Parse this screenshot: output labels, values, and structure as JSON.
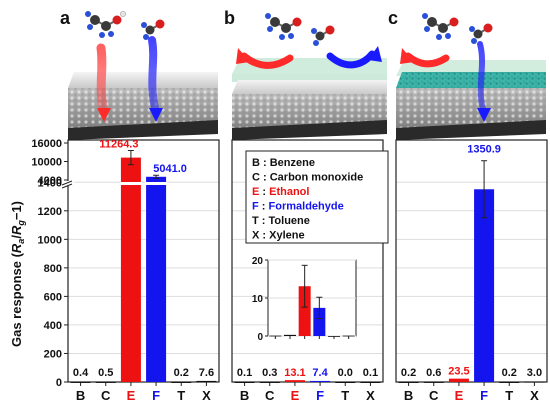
{
  "figure": {
    "ylabel_prefix": "Gas response (",
    "ylabel_R1": "R",
    "ylabel_sub1": "a",
    "ylabel_slash": "/",
    "ylabel_R2": "R",
    "ylabel_sub2": "g",
    "ylabel_suffix": "−1)",
    "y_ticks_lower": [
      "0",
      "200",
      "400",
      "600",
      "800",
      "1000",
      "1200",
      "1400"
    ],
    "y_ticks_upper": [
      "4000",
      "10000",
      "16000"
    ],
    "colors": {
      "ethanol": "#ee1111",
      "formaldehyde": "#1414ee",
      "black": "#111111",
      "grid": "#dddddd"
    }
  },
  "legend": {
    "entries": [
      {
        "key": "B",
        "sep": " : ",
        "name": "Benzene",
        "color": "#111111"
      },
      {
        "key": "C",
        "sep": " : ",
        "name": "Carbon monoxide",
        "color": "#111111"
      },
      {
        "key": "E",
        "sep": " : ",
        "name": "Ethanol",
        "color": "#ee1111"
      },
      {
        "key": "F",
        "sep": " : ",
        "name": "Formaldehyde",
        "color": "#1414ee"
      },
      {
        "key": "T",
        "sep": " : ",
        "name": "Toluene",
        "color": "#111111"
      },
      {
        "key": "X",
        "sep": " : ",
        "name": "Xylene",
        "color": "#111111"
      }
    ]
  },
  "chart_data": [
    {
      "panel": "a",
      "type": "bar",
      "categories": [
        "B",
        "C",
        "E",
        "F",
        "T",
        "X"
      ],
      "values": [
        0.4,
        0.5,
        11264.3,
        5041.0,
        0.2,
        7.6
      ],
      "labels": [
        "0.4",
        "0.5",
        "11264.3",
        "5041.0",
        "0.2",
        "7.6"
      ],
      "errors": [
        0,
        0,
        2300,
        500,
        0,
        0
      ],
      "ylim_lower": [
        0,
        1500
      ],
      "ylim_upper": [
        1500,
        16000
      ],
      "broken_axis": true
    },
    {
      "panel": "b",
      "type": "bar",
      "categories": [
        "B",
        "C",
        "E",
        "F",
        "T",
        "X"
      ],
      "values": [
        0.1,
        0.3,
        13.1,
        7.4,
        0.0,
        0.1
      ],
      "labels": [
        "0.1",
        "0.3",
        "13.1",
        "7.4",
        "0.0",
        "0.1"
      ],
      "inset": {
        "y_ticks": [
          "0",
          "10",
          "20"
        ],
        "ylim": [
          0,
          20
        ],
        "errors": [
          0,
          0,
          5.5,
          2.8,
          0,
          0
        ]
      }
    },
    {
      "panel": "c",
      "type": "bar",
      "categories": [
        "B",
        "C",
        "E",
        "F",
        "T",
        "X"
      ],
      "values": [
        0.2,
        0.6,
        23.5,
        1350.9,
        0.2,
        3.0
      ],
      "labels": [
        "0.2",
        "0.6",
        "23.5",
        "1350.9",
        "0.2",
        "3.0"
      ],
      "errors": [
        0,
        0,
        0,
        200,
        0,
        0
      ]
    }
  ]
}
